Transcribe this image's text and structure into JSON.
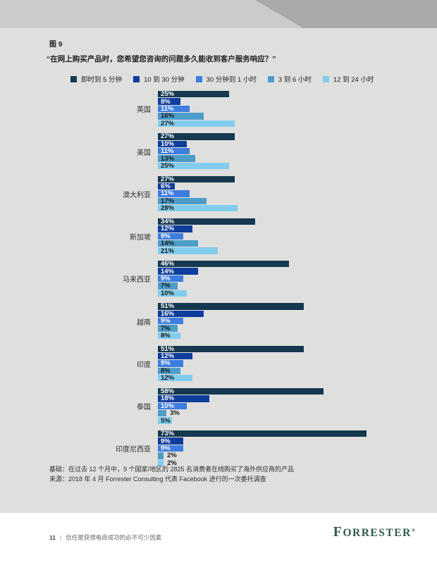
{
  "page": {
    "figure_label": "图 9",
    "title": "“在网上购买产品时，您希望您咨询的问题多久能收到客户服务响应？”",
    "footnote_base": "基础：在过去 12 个月中，9 个国家/地区的 2825 名消费者在线购买了海外供应商的产品",
    "footnote_source": "来源：2018 年 4 月 Forrester Consulting 代表 Facebook 进行的一次委托调查",
    "footer_page_number": "11",
    "footer_separator": "|",
    "footer_text": "信任是获得电商成功的必不可少因素",
    "brand_logo": "FORRESTER",
    "brand_reg_mark": "®"
  },
  "colors": {
    "series": [
      "#14384f",
      "#0e3d9b",
      "#3e7de0",
      "#4d9dc9",
      "#82cdee"
    ],
    "content_bg": "#dfdfde",
    "band_bg": "#cbcbcb",
    "band_dark": "#a9a9a9",
    "logo_green": "#2d5c48"
  },
  "chart_data": {
    "type": "bar",
    "orientation": "horizontal",
    "unit": "%",
    "title": "“在网上购买产品时，您希望您咨询的问题多久能收到客户服务响应？”",
    "legend": [
      "即时到 5 分钟",
      "10 到 30 分钟",
      "30 分钟到 1 小时",
      "3 到 6 小时",
      "12 到 24 小时"
    ],
    "legend_position": "top",
    "categories": [
      "英国",
      "美国",
      "澳大利亚",
      "新加坡",
      "马来西亚",
      "越南",
      "印度",
      "泰国",
      "印度尼西亚"
    ],
    "series": [
      {
        "name": "即时到 5 分钟",
        "values": [
          25,
          27,
          27,
          34,
          46,
          51,
          51,
          58,
          73
        ]
      },
      {
        "name": "10 到 30 分钟",
        "values": [
          8,
          10,
          6,
          12,
          14,
          16,
          12,
          18,
          9
        ]
      },
      {
        "name": "30 分钟到 1 小时",
        "values": [
          11,
          11,
          11,
          9,
          9,
          9,
          9,
          10,
          9
        ]
      },
      {
        "name": "3 到 6 小时",
        "values": [
          16,
          13,
          17,
          14,
          7,
          7,
          8,
          3,
          2
        ]
      },
      {
        "name": "12 到 24 小时",
        "values": [
          27,
          25,
          28,
          21,
          10,
          8,
          12,
          5,
          2
        ]
      }
    ],
    "xlim": [
      0,
      100
    ],
    "value_labels": "percent",
    "grid": false
  }
}
